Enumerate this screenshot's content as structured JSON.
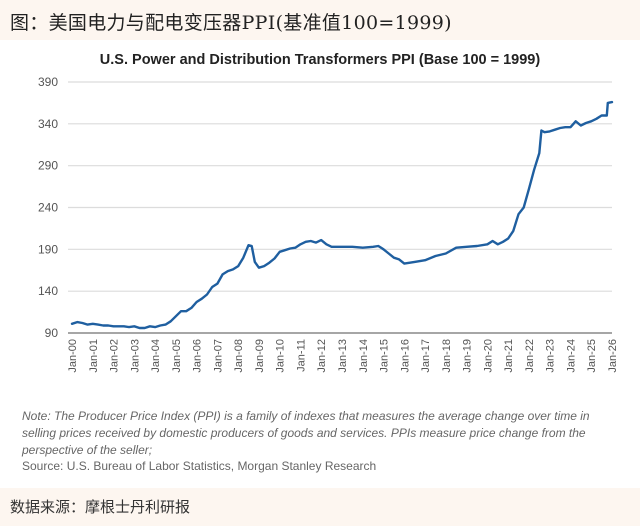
{
  "header": {
    "title": "图：美国电力与配电变压器PPI(基准值100=1999)"
  },
  "footer": {
    "source_cn": "数据来源：摩根士丹利研报"
  },
  "note": {
    "text": "Note: The Producer Price Index (PPI) is a family of indexes that measures the average change over time in selling prices received by domestic producers of goods and services. PPIs measure price change from the perspective of the seller;",
    "source": "Source: U.S. Bureau of Labor Statistics, Morgan Stanley Research"
  },
  "colors": {
    "line": "#1f5fa0",
    "grid": "#dcdcdc",
    "axis": "#888888"
  },
  "chart_data": {
    "type": "line",
    "title": "U.S. Power and Distribution Transformers PPI (Base 100 = 1999)",
    "xlabel": "",
    "ylabel": "",
    "ylim": [
      90,
      390
    ],
    "yticks": [
      90,
      140,
      190,
      240,
      290,
      340,
      390
    ],
    "grid": true,
    "legend": "none",
    "xticks": [
      "Jan-00",
      "Jan-01",
      "Jan-02",
      "Jan-03",
      "Jan-04",
      "Jan-05",
      "Jan-06",
      "Jan-07",
      "Jan-08",
      "Jan-09",
      "Jan-10",
      "Jan-11",
      "Jan-12",
      "Jan-13",
      "Jan-14",
      "Jan-15",
      "Jan-16",
      "Jan-17",
      "Jan-18",
      "Jan-19",
      "Jan-20",
      "Jan-21",
      "Jan-22",
      "Jan-23",
      "Jan-24",
      "Jan-25",
      "Jan-26"
    ],
    "series": [
      {
        "name": "Power and Distribution Transformers PPI",
        "x": [
          2000.0,
          2000.25,
          2000.5,
          2000.75,
          2001.0,
          2001.25,
          2001.5,
          2001.75,
          2002.0,
          2002.25,
          2002.5,
          2002.75,
          2003.0,
          2003.25,
          2003.5,
          2003.75,
          2004.0,
          2004.25,
          2004.5,
          2004.75,
          2005.0,
          2005.25,
          2005.5,
          2005.75,
          2006.0,
          2006.25,
          2006.5,
          2006.75,
          2007.0,
          2007.25,
          2007.5,
          2007.75,
          2008.0,
          2008.25,
          2008.5,
          2008.65,
          2008.8,
          2009.0,
          2009.25,
          2009.5,
          2009.75,
          2010.0,
          2010.25,
          2010.5,
          2010.75,
          2011.0,
          2011.25,
          2011.5,
          2011.75,
          2012.0,
          2012.25,
          2012.5,
          2012.75,
          2013.0,
          2013.5,
          2014.0,
          2014.5,
          2014.75,
          2015.0,
          2015.25,
          2015.5,
          2015.75,
          2016.0,
          2016.5,
          2017.0,
          2017.5,
          2018.0,
          2018.5,
          2019.0,
          2019.5,
          2020.0,
          2020.25,
          2020.5,
          2020.75,
          2021.0,
          2021.25,
          2021.5,
          2021.75,
          2022.0,
          2022.25,
          2022.5,
          2022.6,
          2022.75,
          2023.0,
          2023.25,
          2023.5,
          2023.75,
          2024.0,
          2024.25,
          2024.5,
          2024.75,
          2025.0,
          2025.25,
          2025.5,
          2025.75,
          2025.8,
          2026.0
        ],
        "values": [
          101,
          103,
          102,
          100,
          101,
          100,
          99,
          99,
          98,
          98,
          98,
          97,
          98,
          96,
          96,
          98,
          97,
          99,
          100,
          104,
          110,
          116,
          116,
          120,
          127,
          131,
          136,
          145,
          149,
          160,
          164,
          166,
          170,
          180,
          195,
          194,
          175,
          168,
          170,
          174,
          179,
          187,
          189,
          191,
          192,
          196,
          199,
          200,
          198,
          201,
          196,
          193,
          193,
          193,
          193,
          192,
          193,
          194,
          190,
          185,
          180,
          178,
          173,
          175,
          177,
          182,
          185,
          192,
          193,
          194,
          196,
          200,
          196,
          199,
          203,
          212,
          232,
          240,
          262,
          285,
          305,
          332,
          330,
          331,
          333,
          335,
          336,
          336,
          343,
          338,
          341,
          343,
          346,
          350,
          350,
          365,
          366
        ]
      }
    ]
  }
}
